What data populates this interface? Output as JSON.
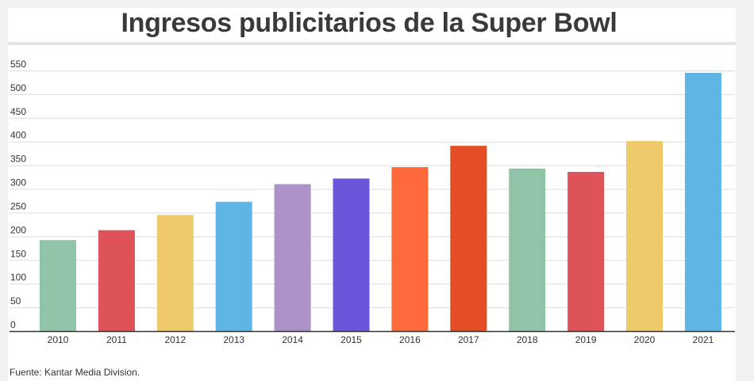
{
  "chart_data": {
    "type": "bar",
    "title": "Ingresos publicitarios de la Super Bowl",
    "xlabel": "",
    "ylabel": "",
    "categories": [
      "2010",
      "2011",
      "2012",
      "2013",
      "2014",
      "2015",
      "2016",
      "2017",
      "2018",
      "2019",
      "2020",
      "2021"
    ],
    "values": [
      192,
      213,
      245,
      273,
      310,
      322,
      346,
      391,
      343,
      336,
      401,
      545
    ],
    "bar_colors": [
      "#8fc4a9",
      "#dd5357",
      "#efca6b",
      "#5fb6e4",
      "#ac92c9",
      "#6d55da",
      "#fe6a3b",
      "#e24e25",
      "#8fc4a9",
      "#dd5357",
      "#efca6b",
      "#5fb6e4"
    ],
    "ylim": [
      0,
      565
    ],
    "yticks": [
      0,
      50,
      100,
      150,
      200,
      250,
      300,
      350,
      400,
      450,
      500,
      550
    ],
    "grid": true,
    "legend": "none"
  },
  "source": "Fuente: Kantar Media Division."
}
